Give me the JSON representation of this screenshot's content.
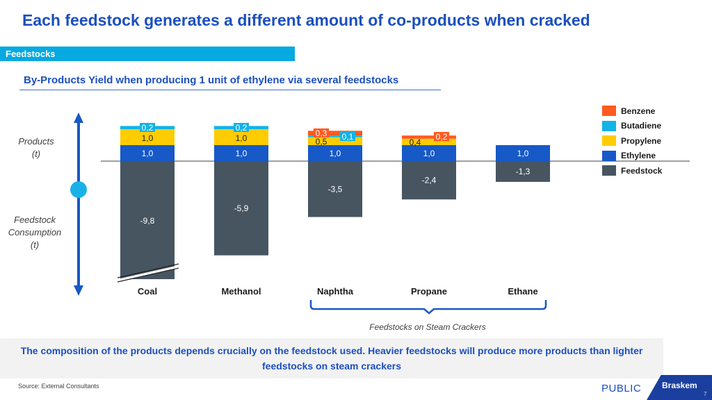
{
  "header": {
    "title": "Each feedstock generates a different amount of co-products when cracked",
    "section": "Feedstocks",
    "subtitle": "By-Products Yield when producing 1 unit of ethylene via several feedstocks"
  },
  "axis_labels": {
    "products": "Products",
    "products_unit": "(t)",
    "feedstock_line1": "Feedstock",
    "feedstock_line2": "Consumption",
    "feedstock_unit": "(t)"
  },
  "bracket_label": "Feedstocks on Steam Crackers",
  "note": "The composition of the products depends crucially on the feedstock used. Heavier feedstocks will produce more products than lighter feedstocks on steam crackers",
  "footer": {
    "source": "Source: External Consultants",
    "classification": "PUBLIC",
    "logo": "Braskem",
    "page": "7"
  },
  "colors": {
    "Benzene": "#ff5a1f",
    "Butadiene": "#12b3e6",
    "Propylene": "#ffcc00",
    "Ethylene": "#1659c7",
    "Feedstock": "#475561"
  },
  "chart_data": {
    "type": "bar",
    "stacked": true,
    "title": "By-Products Yield when producing 1 unit of ethylene via several feedstocks",
    "ylabel": "Products (t) / Feedstock Consumption (t)",
    "categories": [
      "Coal",
      "Methanol",
      "Naphtha",
      "Propane",
      "Ethane"
    ],
    "series": [
      {
        "name": "Benzene",
        "values": [
          0,
          0,
          0.3,
          0.2,
          0
        ],
        "labels": [
          "",
          "",
          "0,3",
          "0,2",
          ""
        ]
      },
      {
        "name": "Butadiene",
        "values": [
          0.2,
          0.2,
          0.1,
          0,
          0
        ],
        "labels": [
          "0,2",
          "0,2",
          "0,1",
          "",
          ""
        ]
      },
      {
        "name": "Propylene",
        "values": [
          1.0,
          1.0,
          0.5,
          0.4,
          0
        ],
        "labels": [
          "1,0",
          "1,0",
          "0,5",
          "0,4",
          ""
        ]
      },
      {
        "name": "Ethylene",
        "values": [
          1.0,
          1.0,
          1.0,
          1.0,
          1.0
        ],
        "labels": [
          "1,0",
          "1,0",
          "1,0",
          "1,0",
          "1,0"
        ]
      },
      {
        "name": "Feedstock",
        "values": [
          -9.8,
          -5.9,
          -3.5,
          -2.4,
          -1.3
        ],
        "labels": [
          "-9,8",
          "-5,9",
          "-3,5",
          "-2,4",
          "-1,3"
        ]
      }
    ],
    "legend": [
      "Benzene",
      "Butadiene",
      "Propylene",
      "Ethylene",
      "Feedstock"
    ],
    "legend_position": "top-right",
    "axis_break": "Coal feedstock bar truncated"
  }
}
